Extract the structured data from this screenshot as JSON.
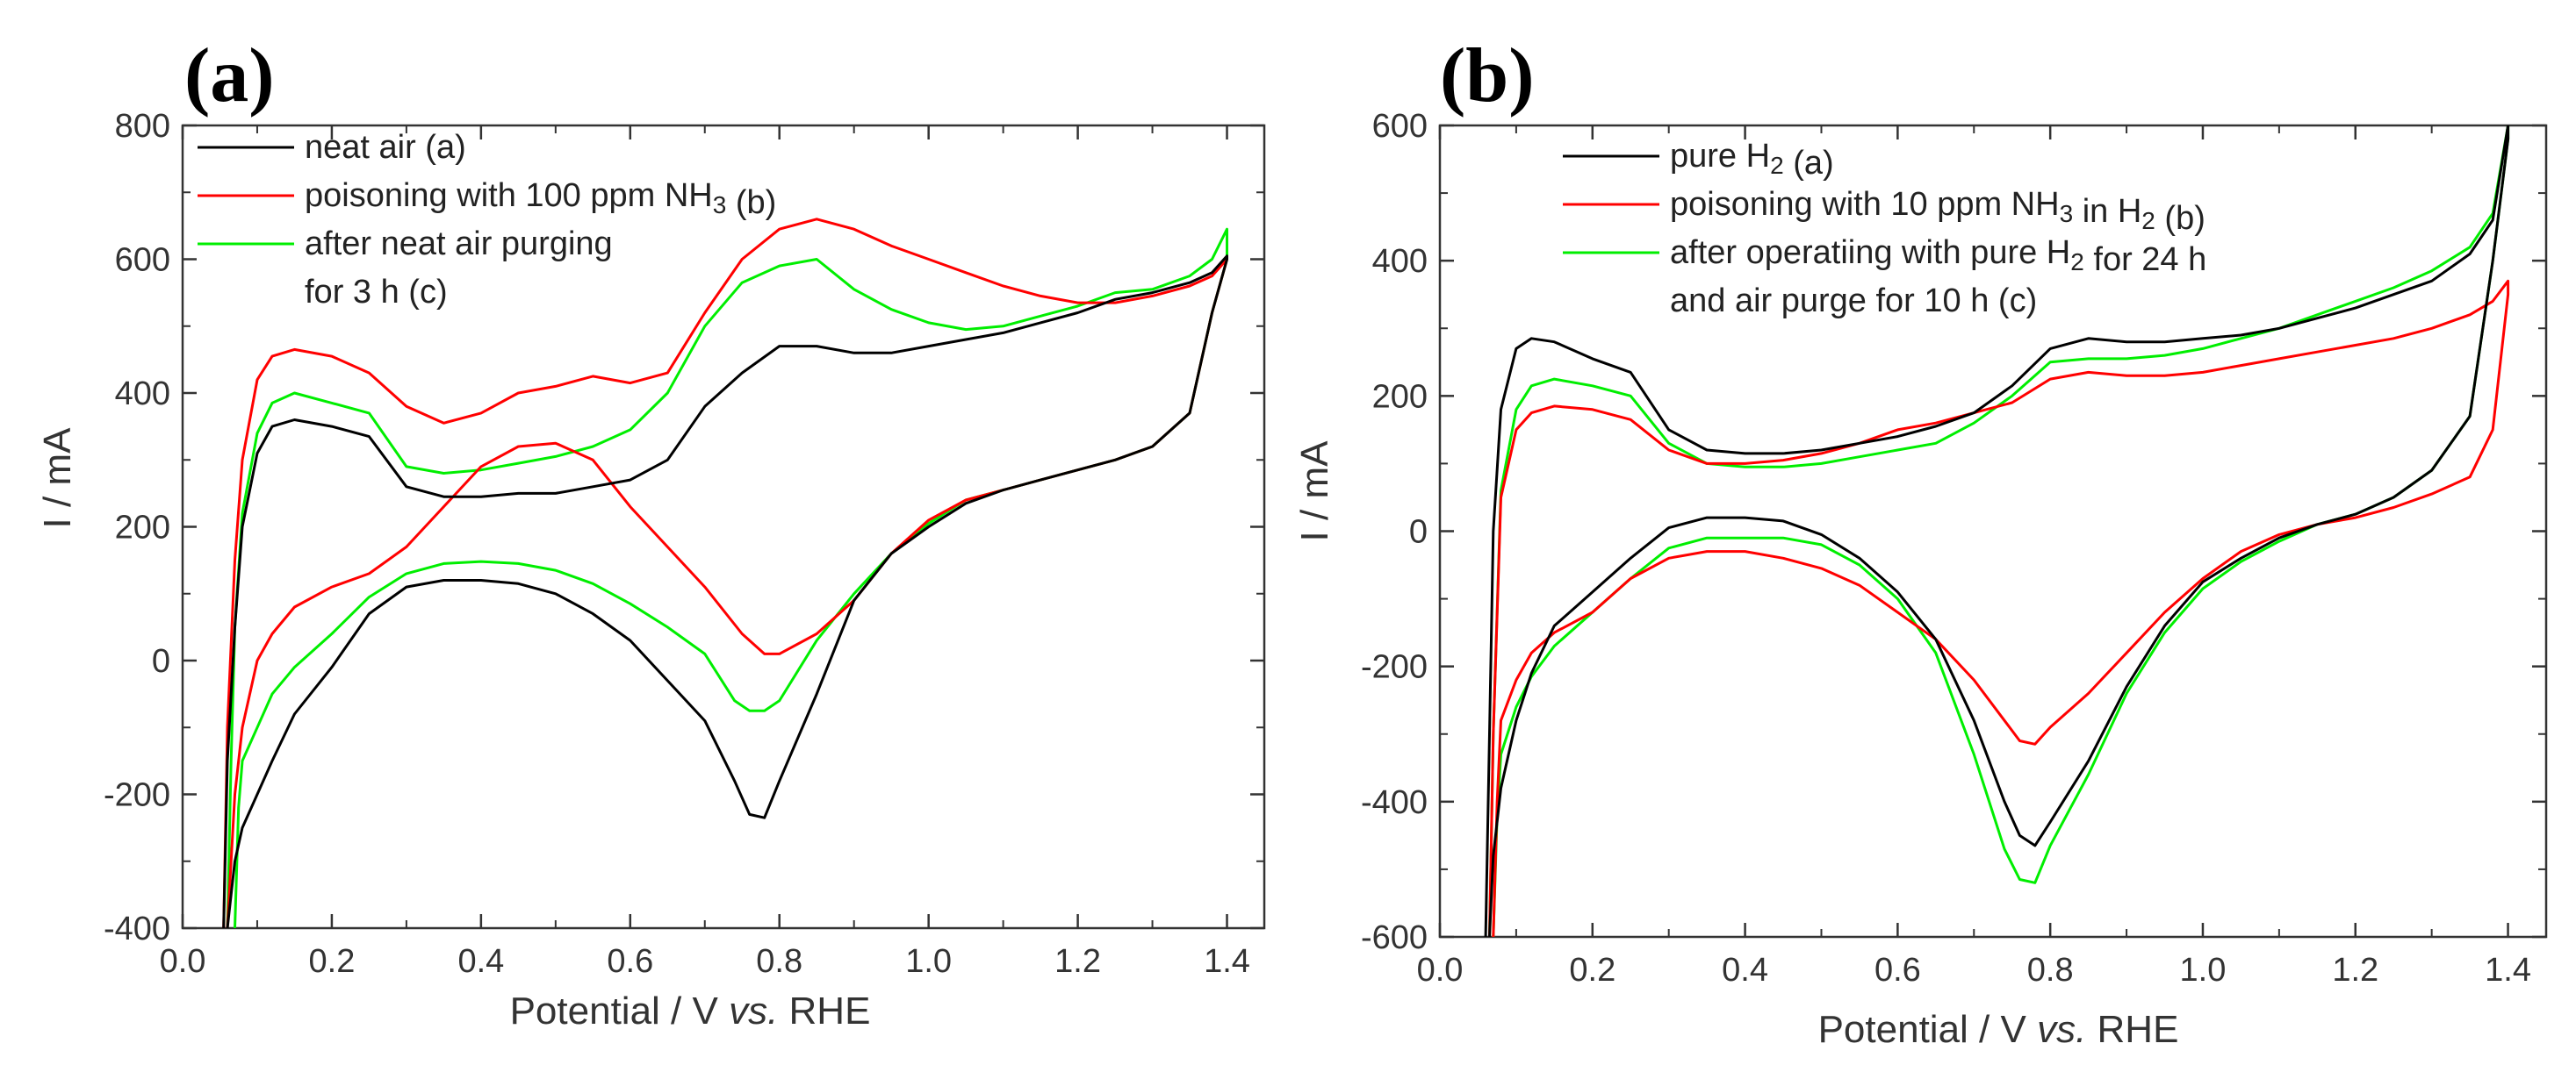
{
  "chart_data": [
    {
      "panel": "(a)",
      "type": "line",
      "title": "",
      "xlabel": {
        "pre": "Potential / V ",
        "ital": "vs.",
        "post": " RHE"
      },
      "ylabel": "I / mA",
      "xlim": [
        0.0,
        1.45
      ],
      "ylim": [
        -400,
        800
      ],
      "xticks": [
        "0.0",
        "0.2",
        "0.4",
        "0.6",
        "0.8",
        "1.0",
        "1.2",
        "1.4"
      ],
      "yticks": [
        "-400",
        "-200",
        "0",
        "200",
        "400",
        "600",
        "800"
      ],
      "legend_position": "top-left",
      "legend": [
        {
          "label": "neat air (a)",
          "color": "#000000"
        },
        {
          "label": "poisoning with 100 ppm NH",
          "sub": "3",
          "tail": " (b)",
          "color": "#ff0000"
        },
        {
          "label": "after neat air purging",
          "line2": "for 3 h (c)",
          "color": "#00ee00"
        }
      ],
      "series": [
        {
          "name": "neat air (a)",
          "color": "#000000",
          "x": [
            0.055,
            0.06,
            0.07,
            0.08,
            0.1,
            0.12,
            0.15,
            0.2,
            0.25,
            0.3,
            0.35,
            0.4,
            0.45,
            0.5,
            0.55,
            0.6,
            0.65,
            0.7,
            0.75,
            0.8,
            0.85,
            0.9,
            0.95,
            1.0,
            1.05,
            1.1,
            1.15,
            1.2,
            1.25,
            1.3,
            1.35,
            1.38,
            1.4,
            1.4,
            1.38,
            1.35,
            1.3,
            1.25,
            1.2,
            1.15,
            1.1,
            1.05,
            1.0,
            0.95,
            0.9,
            0.85,
            0.8,
            0.78,
            0.76,
            0.74,
            0.7,
            0.65,
            0.6,
            0.55,
            0.5,
            0.45,
            0.4,
            0.35,
            0.3,
            0.25,
            0.2,
            0.15,
            0.12,
            0.1,
            0.08,
            0.07,
            0.065,
            0.06
          ],
          "y": [
            -400,
            -150,
            50,
            200,
            310,
            350,
            360,
            350,
            335,
            260,
            245,
            245,
            250,
            250,
            260,
            270,
            300,
            380,
            430,
            470,
            470,
            460,
            460,
            470,
            480,
            490,
            505,
            520,
            540,
            550,
            565,
            580,
            605,
            600,
            520,
            370,
            320,
            300,
            285,
            270,
            255,
            235,
            200,
            160,
            90,
            -50,
            -180,
            -235,
            -230,
            -180,
            -90,
            -30,
            30,
            70,
            100,
            115,
            120,
            120,
            110,
            70,
            -10,
            -80,
            -150,
            -200,
            -250,
            -300,
            -350,
            -400
          ]
        },
        {
          "name": "poisoning with 100 ppm NH3 (b)",
          "color": "#ff0000",
          "x": [
            0.055,
            0.06,
            0.07,
            0.08,
            0.1,
            0.12,
            0.15,
            0.2,
            0.25,
            0.3,
            0.35,
            0.4,
            0.45,
            0.5,
            0.55,
            0.6,
            0.65,
            0.7,
            0.75,
            0.8,
            0.85,
            0.9,
            0.95,
            1.0,
            1.05,
            1.1,
            1.15,
            1.2,
            1.25,
            1.3,
            1.35,
            1.38,
            1.4,
            1.4,
            1.38,
            1.35,
            1.3,
            1.25,
            1.2,
            1.15,
            1.1,
            1.05,
            1.0,
            0.95,
            0.9,
            0.85,
            0.8,
            0.78,
            0.75,
            0.7,
            0.65,
            0.6,
            0.55,
            0.5,
            0.45,
            0.4,
            0.35,
            0.3,
            0.25,
            0.2,
            0.15,
            0.12,
            0.1,
            0.08,
            0.07,
            0.065,
            0.06
          ],
          "y": [
            -400,
            -100,
            150,
            300,
            420,
            455,
            465,
            455,
            430,
            380,
            355,
            370,
            400,
            410,
            425,
            415,
            430,
            520,
            600,
            645,
            660,
            645,
            620,
            600,
            580,
            560,
            545,
            535,
            535,
            545,
            560,
            575,
            600,
            600,
            520,
            370,
            320,
            300,
            285,
            270,
            255,
            240,
            210,
            160,
            90,
            40,
            10,
            10,
            40,
            110,
            170,
            230,
            300,
            325,
            320,
            290,
            230,
            170,
            130,
            110,
            80,
            40,
            0,
            -100,
            -200,
            -300,
            -400
          ]
        },
        {
          "name": "after neat air purging for 3 h (c)",
          "color": "#00ee00",
          "x": [
            0.06,
            0.065,
            0.07,
            0.08,
            0.1,
            0.12,
            0.15,
            0.2,
            0.25,
            0.3,
            0.35,
            0.4,
            0.45,
            0.5,
            0.55,
            0.6,
            0.65,
            0.7,
            0.75,
            0.8,
            0.85,
            0.9,
            0.95,
            1.0,
            1.05,
            1.1,
            1.15,
            1.2,
            1.25,
            1.3,
            1.35,
            1.38,
            1.4,
            1.4,
            1.38,
            1.35,
            1.3,
            1.25,
            1.2,
            1.15,
            1.1,
            1.05,
            1.0,
            0.95,
            0.9,
            0.85,
            0.8,
            0.78,
            0.76,
            0.74,
            0.7,
            0.65,
            0.6,
            0.55,
            0.5,
            0.45,
            0.4,
            0.35,
            0.3,
            0.25,
            0.2,
            0.15,
            0.12,
            0.1,
            0.08,
            0.075,
            0.07
          ],
          "y": [
            -400,
            -150,
            50,
            220,
            340,
            385,
            400,
            385,
            370,
            290,
            280,
            285,
            295,
            305,
            320,
            345,
            400,
            500,
            565,
            590,
            600,
            555,
            525,
            505,
            495,
            500,
            515,
            530,
            550,
            555,
            575,
            600,
            645,
            600,
            520,
            370,
            320,
            300,
            285,
            270,
            255,
            240,
            205,
            160,
            100,
            30,
            -60,
            -75,
            -75,
            -60,
            10,
            50,
            85,
            115,
            135,
            145,
            148,
            145,
            130,
            95,
            40,
            -10,
            -50,
            -100,
            -150,
            -220,
            -400
          ]
        }
      ]
    },
    {
      "panel": "(b)",
      "type": "line",
      "title": "",
      "xlabel": {
        "pre": "Potential / V ",
        "ital": "vs.",
        "post": " RHE"
      },
      "ylabel": "I / mA",
      "xlim": [
        0.0,
        1.45
      ],
      "ylim": [
        -600,
        600
      ],
      "xticks": [
        "0.0",
        "0.2",
        "0.4",
        "0.6",
        "0.8",
        "1.0",
        "1.2",
        "1.4"
      ],
      "yticks": [
        "-600",
        "-400",
        "-200",
        "0",
        "200",
        "400",
        "600"
      ],
      "legend_position": "top-left",
      "legend": [
        {
          "label": "pure H",
          "sub": "2",
          "tail": " (a)",
          "color": "#000000"
        },
        {
          "label": "poisoning with 10 ppm NH",
          "sub": "3",
          "tail": " in H",
          "sub2": "2",
          "tail2": " (b)",
          "color": "#ff0000"
        },
        {
          "label": "after operatiing with pure H",
          "sub": "2",
          "tail": " for 24 h",
          "line2": "and air purge for 10 h (c)",
          "color": "#00ee00"
        }
      ],
      "series": [
        {
          "name": "pure H2 (a)",
          "color": "#000000",
          "x": [
            0.06,
            0.065,
            0.07,
            0.08,
            0.1,
            0.12,
            0.15,
            0.2,
            0.25,
            0.3,
            0.35,
            0.4,
            0.45,
            0.5,
            0.55,
            0.6,
            0.65,
            0.7,
            0.75,
            0.8,
            0.85,
            0.9,
            0.95,
            1.0,
            1.05,
            1.1,
            1.15,
            1.2,
            1.25,
            1.3,
            1.35,
            1.38,
            1.4,
            1.4,
            1.38,
            1.35,
            1.3,
            1.25,
            1.2,
            1.15,
            1.1,
            1.05,
            1.0,
            0.95,
            0.9,
            0.85,
            0.8,
            0.78,
            0.76,
            0.74,
            0.7,
            0.65,
            0.6,
            0.55,
            0.5,
            0.45,
            0.4,
            0.35,
            0.3,
            0.25,
            0.2,
            0.15,
            0.12,
            0.1,
            0.08,
            0.07,
            0.065
          ],
          "y": [
            -600,
            -300,
            0,
            180,
            270,
            285,
            280,
            255,
            235,
            150,
            120,
            115,
            115,
            120,
            130,
            140,
            155,
            175,
            215,
            270,
            285,
            280,
            280,
            285,
            290,
            300,
            315,
            330,
            350,
            370,
            410,
            460,
            600,
            580,
            400,
            170,
            90,
            50,
            25,
            10,
            -10,
            -40,
            -75,
            -140,
            -230,
            -340,
            -430,
            -465,
            -450,
            -400,
            -280,
            -160,
            -90,
            -40,
            -5,
            15,
            20,
            20,
            5,
            -40,
            -90,
            -140,
            -210,
            -280,
            -380,
            -480,
            -600
          ]
        },
        {
          "name": "poisoning with 10 ppm NH3 in H2 (b)",
          "color": "#ff0000",
          "x": [
            0.065,
            0.07,
            0.08,
            0.1,
            0.12,
            0.15,
            0.2,
            0.25,
            0.3,
            0.35,
            0.4,
            0.45,
            0.5,
            0.55,
            0.6,
            0.65,
            0.7,
            0.75,
            0.8,
            0.85,
            0.9,
            0.95,
            1.0,
            1.05,
            1.1,
            1.15,
            1.2,
            1.25,
            1.3,
            1.35,
            1.38,
            1.4,
            1.4,
            1.38,
            1.35,
            1.3,
            1.25,
            1.2,
            1.15,
            1.1,
            1.05,
            1.0,
            0.95,
            0.9,
            0.85,
            0.8,
            0.78,
            0.76,
            0.74,
            0.7,
            0.65,
            0.6,
            0.55,
            0.5,
            0.45,
            0.4,
            0.35,
            0.3,
            0.25,
            0.2,
            0.15,
            0.12,
            0.1,
            0.08,
            0.075,
            0.07
          ],
          "y": [
            -600,
            -300,
            50,
            150,
            175,
            185,
            180,
            165,
            120,
            100,
            100,
            105,
            115,
            130,
            150,
            160,
            175,
            190,
            225,
            235,
            230,
            230,
            235,
            245,
            255,
            265,
            275,
            285,
            300,
            320,
            340,
            370,
            350,
            150,
            80,
            55,
            35,
            20,
            10,
            -5,
            -30,
            -70,
            -120,
            -180,
            -240,
            -290,
            -315,
            -310,
            -280,
            -220,
            -160,
            -120,
            -80,
            -55,
            -40,
            -30,
            -30,
            -40,
            -70,
            -120,
            -150,
            -180,
            -220,
            -280,
            -400,
            -600
          ]
        },
        {
          "name": "after operating with pure H2 for 24 h and air purge for 10 h (c)",
          "color": "#00ee00",
          "x": [
            0.065,
            0.07,
            0.08,
            0.1,
            0.12,
            0.15,
            0.2,
            0.25,
            0.3,
            0.35,
            0.4,
            0.45,
            0.5,
            0.55,
            0.6,
            0.65,
            0.7,
            0.75,
            0.8,
            0.85,
            0.9,
            0.95,
            1.0,
            1.05,
            1.1,
            1.15,
            1.2,
            1.25,
            1.3,
            1.35,
            1.38,
            1.4,
            1.4,
            1.38,
            1.35,
            1.3,
            1.25,
            1.2,
            1.15,
            1.1,
            1.05,
            1.0,
            0.95,
            0.9,
            0.85,
            0.8,
            0.78,
            0.76,
            0.74,
            0.7,
            0.65,
            0.6,
            0.55,
            0.5,
            0.45,
            0.4,
            0.35,
            0.3,
            0.25,
            0.2,
            0.15,
            0.12,
            0.1,
            0.08,
            0.075,
            0.07
          ],
          "y": [
            -600,
            -300,
            60,
            180,
            215,
            225,
            215,
            200,
            130,
            100,
            95,
            95,
            100,
            110,
            120,
            130,
            160,
            200,
            250,
            255,
            255,
            260,
            270,
            285,
            300,
            320,
            340,
            360,
            385,
            420,
            470,
            600,
            580,
            400,
            170,
            90,
            50,
            25,
            10,
            -15,
            -45,
            -85,
            -150,
            -240,
            -360,
            -465,
            -520,
            -515,
            -470,
            -330,
            -180,
            -100,
            -50,
            -20,
            -10,
            -10,
            -10,
            -25,
            -70,
            -120,
            -170,
            -215,
            -260,
            -330,
            -420,
            -600
          ]
        }
      ]
    }
  ]
}
